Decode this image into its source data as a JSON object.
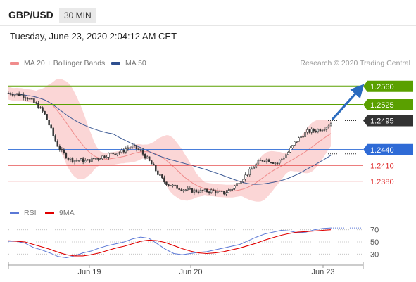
{
  "header": {
    "symbol": "GBP/USD",
    "timeframe": "30 MIN"
  },
  "datetime": "Tuesday, June 23, 2020 2:04:12 AM CET",
  "legend_main": [
    {
      "label": "MA 20 + Bollinger Bands",
      "color": "#f08c8c"
    },
    {
      "label": "MA 50",
      "color": "#2e4f8f"
    }
  ],
  "copyright": "Research © 2020 Trading Central",
  "legend_rsi": [
    {
      "label": "RSI",
      "color": "#5b78d6"
    },
    {
      "label": "9MA",
      "color": "#e00000"
    }
  ],
  "colors": {
    "resistance": "#5aa000",
    "current": "#333333",
    "pivot": "#2f6bd6",
    "support": "#e03030",
    "arrow": "#2a6bbf",
    "candle": "#333333",
    "band_fill": "#f9c8c8"
  },
  "chart_data": [
    {
      "type": "candlestick",
      "price_axis": [
        1.238,
        1.241,
        1.244,
        1.2495,
        1.2525,
        1.256
      ],
      "ylim": [
        1.2345,
        1.2585
      ],
      "x_ticks": [
        "Jun 19",
        "Jun 20",
        "Jun 23"
      ],
      "levels": [
        {
          "label": "1.2560",
          "value": 1.256,
          "kind": "resistance"
        },
        {
          "label": "1.2525",
          "value": 1.2525,
          "kind": "resistance"
        },
        {
          "label": "1.2495",
          "value": 1.2495,
          "kind": "current"
        },
        {
          "label": "1.2440",
          "value": 1.244,
          "kind": "pivot"
        },
        {
          "label": "1.2410",
          "value": 1.241,
          "kind": "support"
        },
        {
          "label": "1.2380",
          "value": 1.238,
          "kind": "support"
        }
      ],
      "close_path": [
        1.2547,
        1.2546,
        1.2544,
        1.254,
        1.2532,
        1.2522,
        1.2508,
        1.2482,
        1.2452,
        1.2435,
        1.2424,
        1.242,
        1.242,
        1.2418,
        1.2422,
        1.2424,
        1.2428,
        1.2432,
        1.2434,
        1.2436,
        1.2444,
        1.2445,
        1.2438,
        1.2426,
        1.2412,
        1.2395,
        1.238,
        1.2373,
        1.2369,
        1.2366,
        1.2363,
        1.2362,
        1.2361,
        1.2361,
        1.2362,
        1.236,
        1.2357,
        1.2363,
        1.2372,
        1.2383,
        1.2394,
        1.2406,
        1.2418,
        1.2422,
        1.2418,
        1.2414,
        1.2425,
        1.2437,
        1.2454,
        1.2465,
        1.2474,
        1.2476,
        1.2478,
        1.2482,
        1.249
      ]
    },
    {
      "type": "line",
      "title": "RSI",
      "ylim": [
        20,
        80
      ],
      "y_ticks": [
        30,
        50,
        70
      ],
      "series": [
        {
          "name": "RSI",
          "values": [
            51,
            51,
            48,
            41,
            37,
            32,
            26,
            24,
            27,
            32,
            35,
            40,
            44,
            47,
            50,
            55,
            58,
            56,
            47,
            38,
            31,
            29,
            31,
            33,
            34,
            37,
            40,
            43,
            46,
            52,
            58,
            63,
            66,
            69,
            68,
            65,
            66,
            70,
            72,
            73
          ]
        },
        {
          "name": "9MA",
          "values": [
            52,
            51,
            50,
            46,
            42,
            38,
            33,
            29,
            27,
            27,
            29,
            32,
            36,
            40,
            43,
            47,
            51,
            53,
            52,
            49,
            44,
            39,
            35,
            32,
            31,
            32,
            34,
            37,
            40,
            44,
            48,
            53,
            57,
            61,
            64,
            66,
            67,
            68,
            69,
            70
          ]
        }
      ]
    }
  ]
}
